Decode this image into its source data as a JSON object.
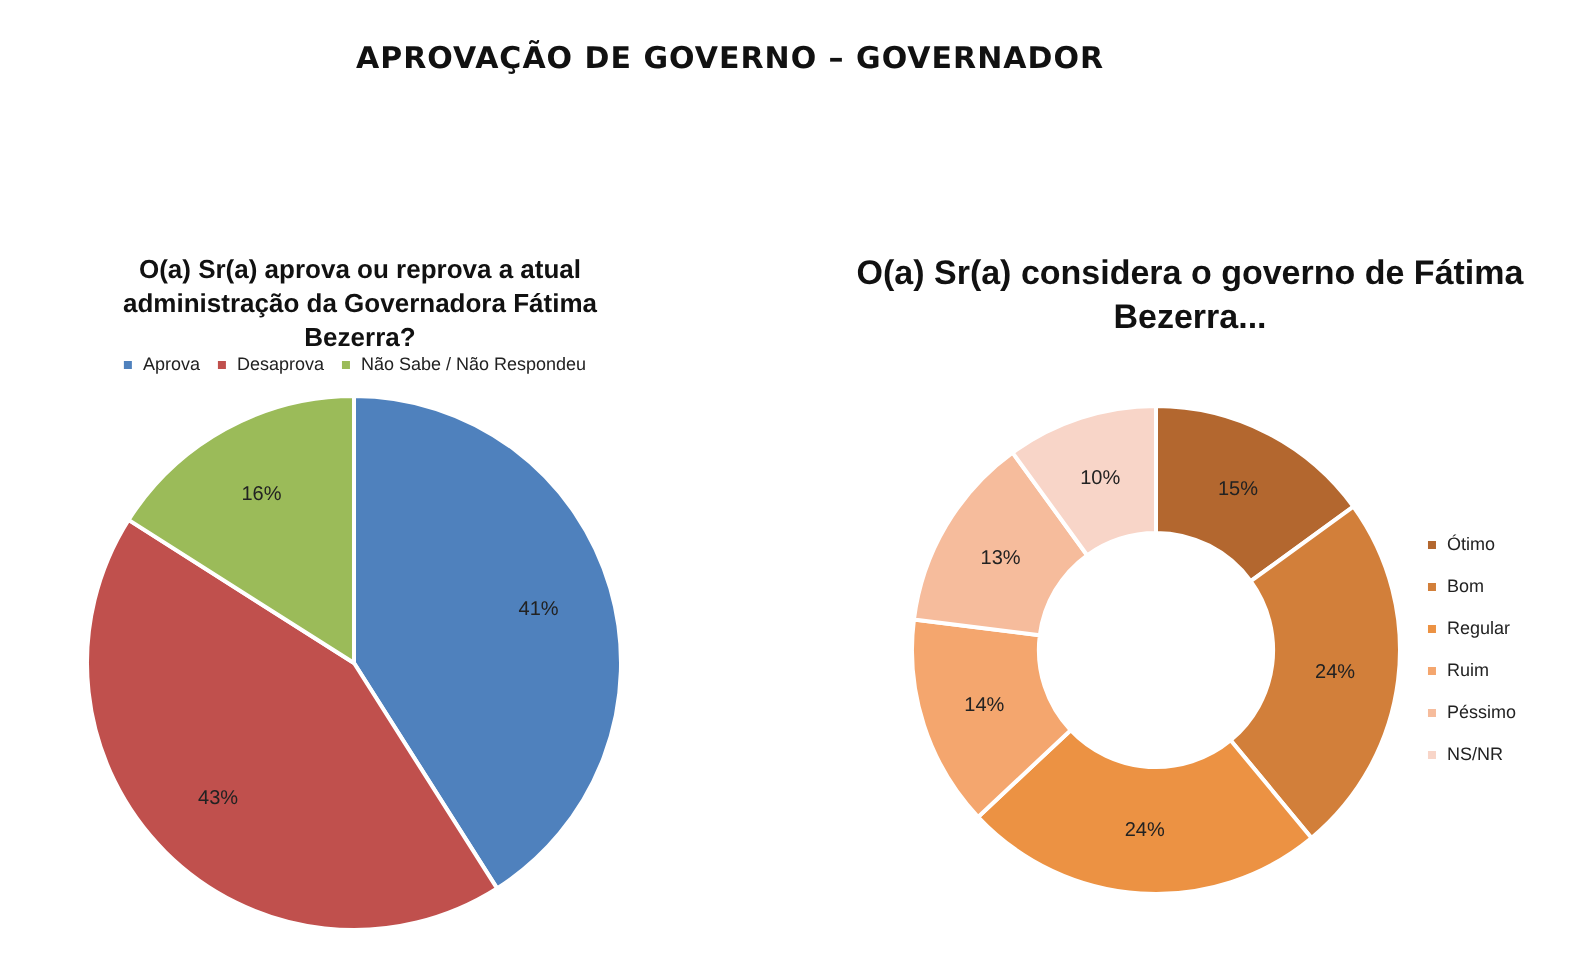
{
  "chart_data": [
    {
      "type": "other",
      "title": "APROVAÇÃO DE GOVERNO – GOVERNADOR"
    },
    {
      "type": "pie",
      "title": "O(a) Sr(a) aprova ou reprova a atual administração da Governadora Fátima Bezerra?",
      "categories": [
        "Aprova",
        "Desaprova",
        "Não Sabe / Não Respondeu"
      ],
      "values": [
        41,
        43,
        16
      ],
      "colors": [
        "#4f81bd",
        "#c0504d",
        "#9bbb59"
      ],
      "value_labels": [
        "41%",
        "43%",
        "16%"
      ],
      "legend": "top"
    },
    {
      "type": "donut",
      "title": "O(a) Sr(a) considera o governo de Fátima Bezerra...",
      "categories": [
        "Ótimo",
        "Bom",
        "Regular",
        "Ruim",
        "Péssimo",
        "NS/NR"
      ],
      "values": [
        15,
        24,
        24,
        14,
        13,
        10
      ],
      "colors": [
        "#b3672f",
        "#d27f3a",
        "#ec9243",
        "#f4a66e",
        "#f6bc9c",
        "#f8d5c8"
      ],
      "value_labels": [
        "15%",
        "24%",
        "24%",
        "14%",
        "13%",
        "10%"
      ],
      "legend": "right"
    }
  ]
}
